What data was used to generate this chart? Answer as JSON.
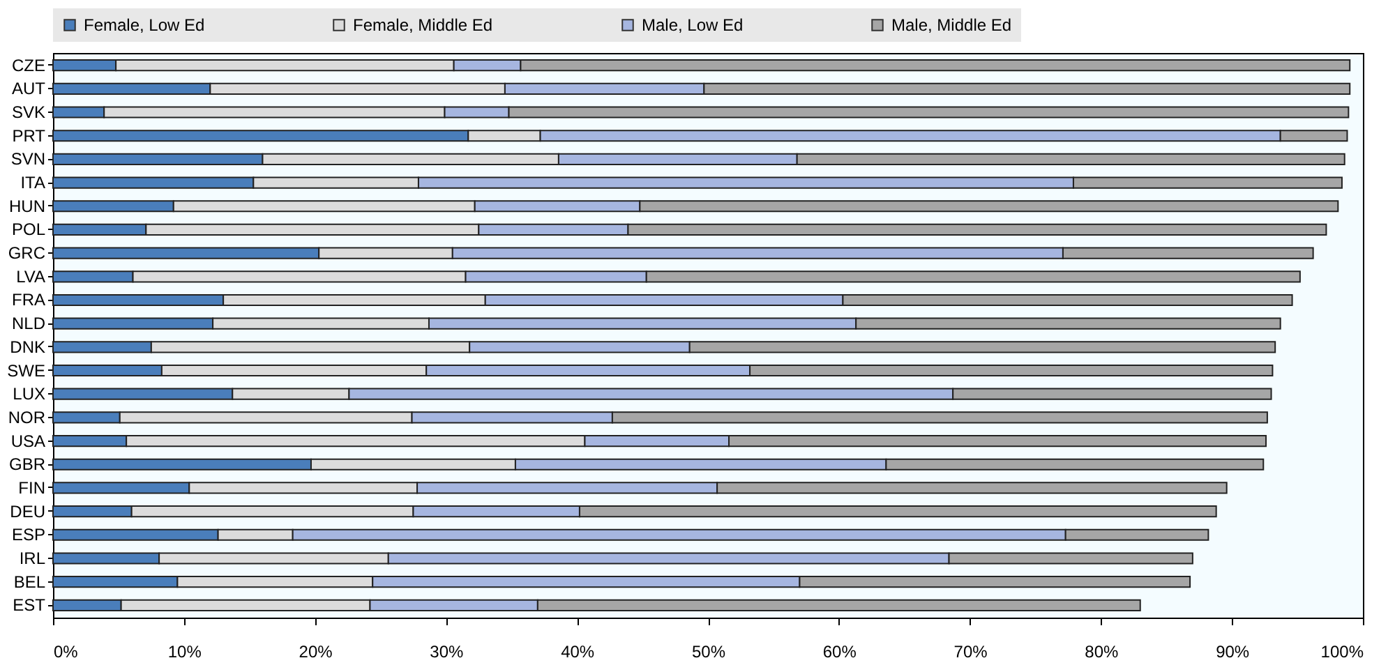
{
  "chart_data": {
    "type": "bar",
    "orientation": "horizontal",
    "stacked": true,
    "categories": [
      "CZE",
      "AUT",
      "SVK",
      "PRT",
      "SVN",
      "ITA",
      "HUN",
      "POL",
      "GRC",
      "LVA",
      "FRA",
      "NLD",
      "DNK",
      "SWE",
      "LUX",
      "NOR",
      "USA",
      "GBR",
      "FIN",
      "DEU",
      "ESP",
      "IRL",
      "BEL",
      "EST"
    ],
    "series": [
      {
        "name": "Female, Low Ed",
        "color": "#4a7ebb",
        "values": [
          4.8,
          12.0,
          3.9,
          31.7,
          16.0,
          15.3,
          9.2,
          7.1,
          20.3,
          6.1,
          13.0,
          12.2,
          7.5,
          8.3,
          13.7,
          5.1,
          5.6,
          19.7,
          10.4,
          6.0,
          12.6,
          8.1,
          9.5,
          5.2
        ]
      },
      {
        "name": "Female, Middle Ed",
        "color": "#dcdcdc",
        "values": [
          25.8,
          22.5,
          26.0,
          5.5,
          22.6,
          12.6,
          23.0,
          25.4,
          10.2,
          25.4,
          20.0,
          16.5,
          24.3,
          20.2,
          8.9,
          22.3,
          35.0,
          15.6,
          17.4,
          21.5,
          5.7,
          17.5,
          14.9,
          19.0
        ]
      },
      {
        "name": "Male, Low Ed",
        "color": "#a6b6e0",
        "values": [
          5.1,
          15.2,
          4.9,
          56.5,
          18.2,
          50.0,
          12.6,
          11.4,
          46.6,
          13.8,
          27.3,
          32.6,
          16.8,
          24.7,
          46.1,
          15.3,
          11.0,
          28.3,
          22.9,
          12.7,
          59.0,
          42.8,
          32.6,
          12.8
        ]
      },
      {
        "name": "Male, Middle Ed",
        "color": "#a6a6a6",
        "values": [
          63.3,
          49.3,
          64.1,
          5.1,
          41.8,
          20.5,
          53.3,
          53.3,
          19.1,
          49.9,
          34.3,
          32.4,
          44.7,
          39.9,
          24.3,
          50.0,
          41.0,
          28.8,
          38.9,
          48.6,
          10.9,
          18.6,
          29.8,
          46.0
        ]
      }
    ],
    "xlim": [
      0,
      100
    ],
    "xticks": [
      {
        "value": 0,
        "label": "0%"
      },
      {
        "value": 10,
        "label": "10%"
      },
      {
        "value": 20,
        "label": "20%"
      },
      {
        "value": 30,
        "label": "30%"
      },
      {
        "value": 40,
        "label": "40%"
      },
      {
        "value": 50,
        "label": "50%"
      },
      {
        "value": 60,
        "label": "60%"
      },
      {
        "value": 70,
        "label": "70%"
      },
      {
        "value": 80,
        "label": "80%"
      },
      {
        "value": 90,
        "label": "90%"
      },
      {
        "value": 100,
        "label": "100%"
      }
    ],
    "legend": "top",
    "grid": false
  }
}
